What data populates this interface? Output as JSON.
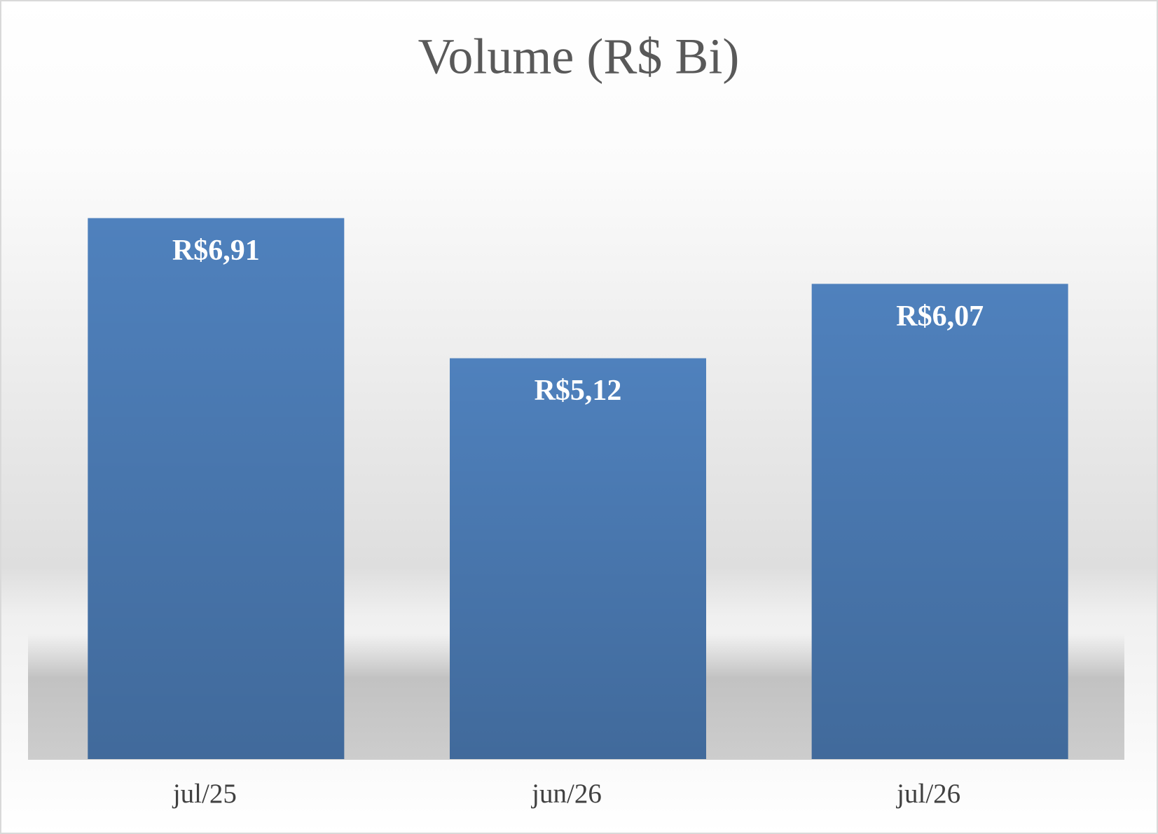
{
  "chart_data": {
    "type": "bar",
    "title": "Volume (R$ Bi)",
    "categories": [
      "jul/25",
      "jun/26",
      "jul/26"
    ],
    "values": [
      6.91,
      5.12,
      6.07
    ],
    "value_labels": [
      "R$6,91",
      "R$5,12",
      "R$6,07"
    ],
    "color": "#4f81bd"
  }
}
